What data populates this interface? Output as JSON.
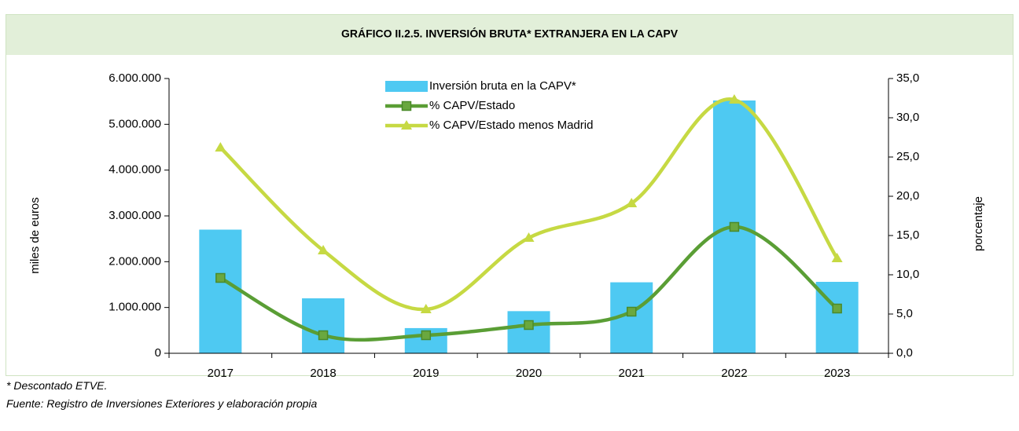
{
  "chart_data": {
    "type": "bar",
    "title": "GRÁFICO II.2.5. INVERSIÓN BRUTA* EXTRANJERA EN LA CAPV",
    "ylabel": "miles de euros",
    "y2label": "porcentaje",
    "notes": [
      "* Descontado ETVE.",
      "Fuente: Registro de Inversiones Exteriores y elaboración propia"
    ],
    "categories": [
      "2017",
      "2018",
      "2019",
      "2020",
      "2021",
      "2022",
      "2023"
    ],
    "series": [
      {
        "name": "Inversión bruta en la CAPV*",
        "color": "#4ec9f2",
        "axis": "y",
        "values": [
          2700000,
          1200000,
          550000,
          920000,
          1550000,
          5520000,
          1560000
        ]
      },
      {
        "name": "% CAPV/Estado",
        "type": "line",
        "marker": "square",
        "color": "#5a9e35",
        "axis": "y2",
        "smooth": true,
        "values": [
          9.6,
          2.3,
          2.3,
          3.6,
          5.3,
          16.1,
          5.7
        ]
      },
      {
        "name": "% CAPV/Estado menos Madrid",
        "type": "line",
        "marker": "triangle",
        "color": "#c6d943",
        "axis": "y2",
        "smooth": true,
        "values": [
          26.2,
          13.1,
          5.6,
          14.7,
          19.1,
          32.3,
          12.1
        ]
      }
    ],
    "ylim": [
      0,
      6000000
    ],
    "yticks": [
      {
        "value": 0,
        "label": "0"
      },
      {
        "value": 1000000,
        "label": "1.000.000"
      },
      {
        "value": 2000000,
        "label": "2.000.000"
      },
      {
        "value": 3000000,
        "label": "3.000.000"
      },
      {
        "value": 4000000,
        "label": "4.000.000"
      },
      {
        "value": 5000000,
        "label": "5.000.000"
      },
      {
        "value": 6000000,
        "label": "6.000.000"
      }
    ],
    "y2lim": [
      0,
      35
    ],
    "y2ticks": [
      {
        "value": 0,
        "label": "0,0"
      },
      {
        "value": 5,
        "label": "5,0"
      },
      {
        "value": 10,
        "label": "10,0"
      },
      {
        "value": 15,
        "label": "15,0"
      },
      {
        "value": 20,
        "label": "20,0"
      },
      {
        "value": 25,
        "label": "25,0"
      },
      {
        "value": 30,
        "label": "30,0"
      },
      {
        "value": 35,
        "label": "35,0"
      }
    ],
    "grid": false,
    "legend": "top"
  }
}
